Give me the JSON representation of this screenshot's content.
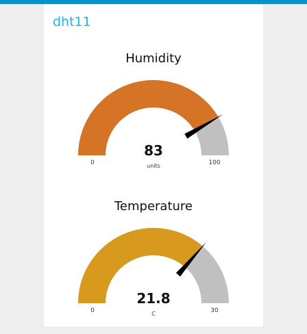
{
  "group": {
    "title": "dht11"
  },
  "colors": {
    "topbar": "#0094ce",
    "title": "#1bb3e8",
    "track": "#c0c0c0",
    "needle": "#000000"
  },
  "gauges": [
    {
      "title": "Humidity",
      "value": "83",
      "units": "units",
      "min": "0",
      "max": "100",
      "color": "#d57326",
      "fraction": 0.83
    },
    {
      "title": "Temperature",
      "value": "21.8",
      "units": "C",
      "min": "0",
      "max": "30",
      "color": "#d8991f",
      "fraction": 0.7267
    }
  ]
}
